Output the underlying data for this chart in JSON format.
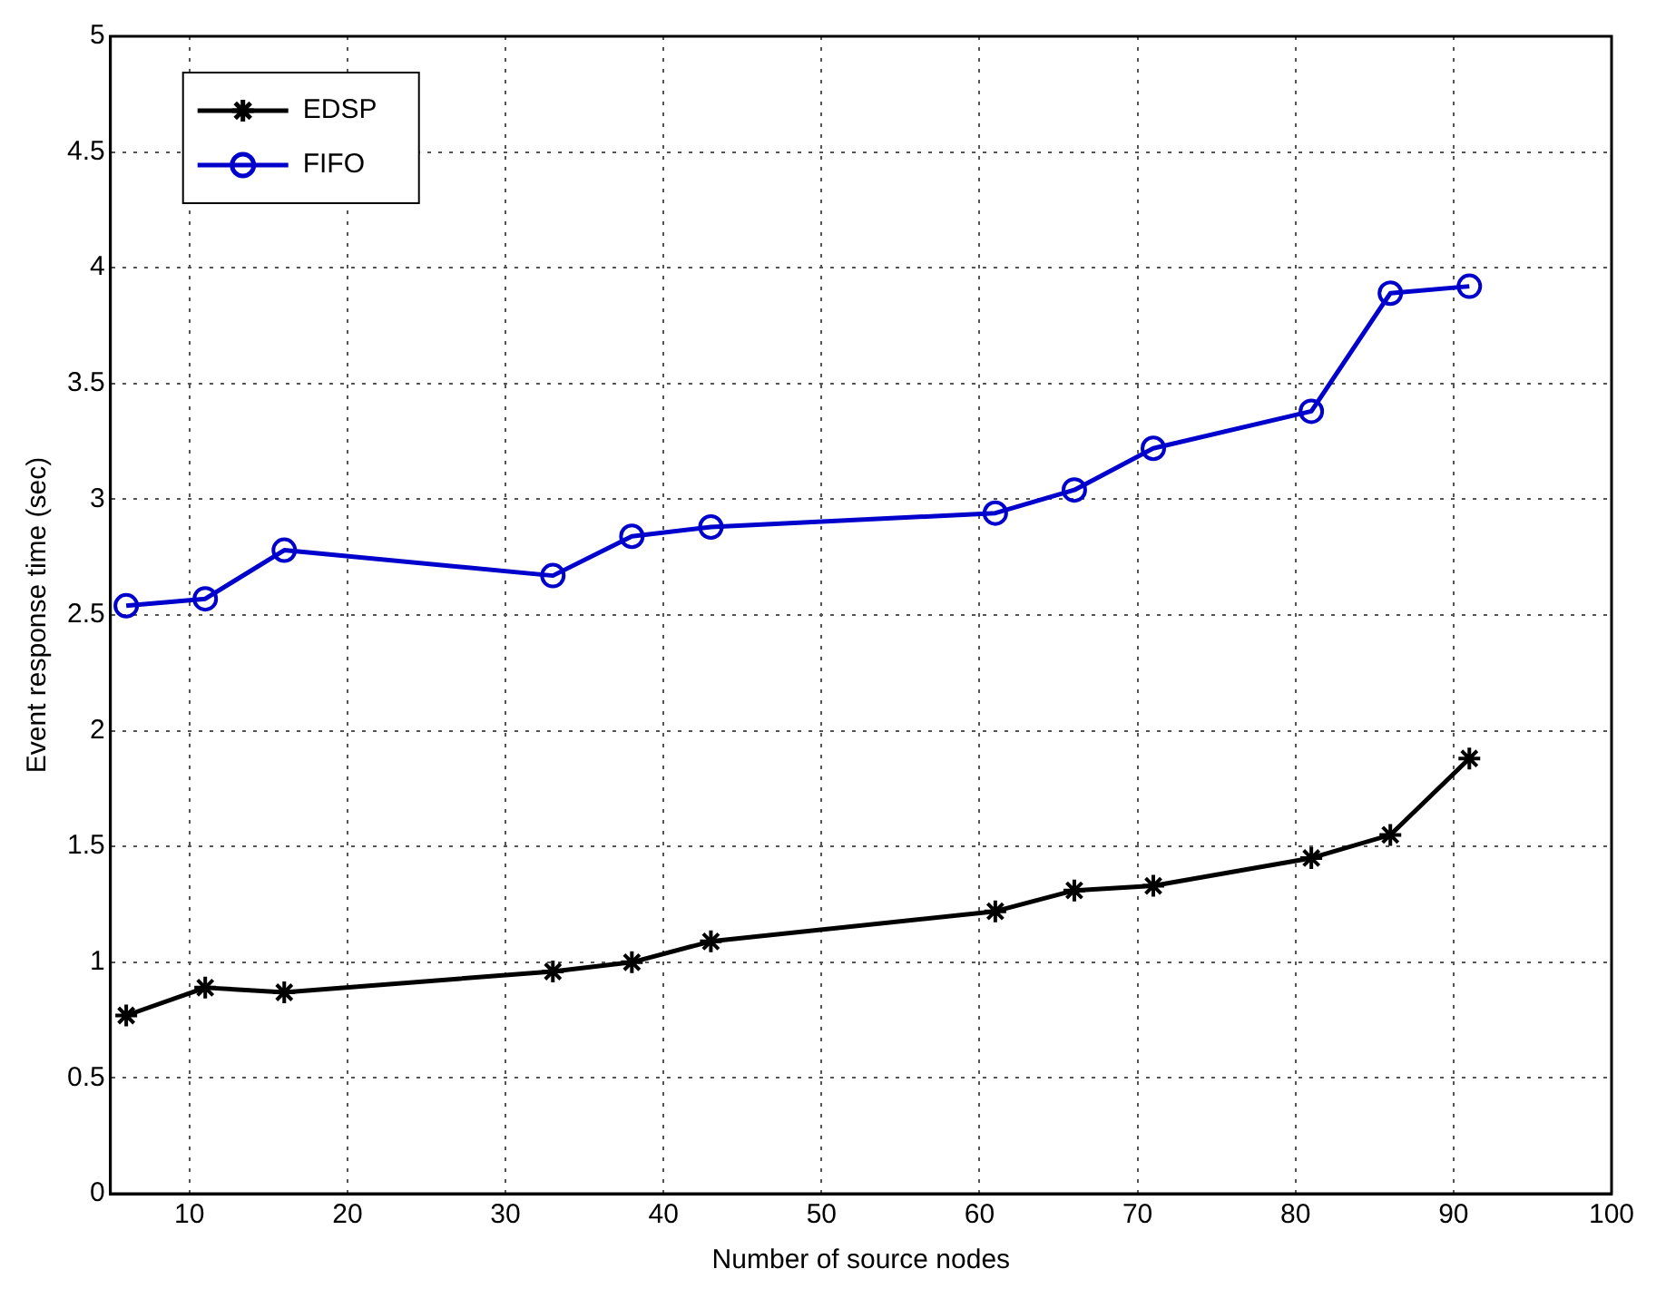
{
  "chart_data": {
    "type": "line",
    "xlabel": "Number of source nodes",
    "ylabel": "Event response time (sec)",
    "x": [
      6,
      11,
      16,
      33,
      38,
      43,
      61,
      66,
      71,
      81,
      86,
      91
    ],
    "series": [
      {
        "name": "EDSP",
        "color": "#000000",
        "marker": "cross",
        "values": [
          0.77,
          0.89,
          0.87,
          0.96,
          1.0,
          1.09,
          1.22,
          1.31,
          1.33,
          1.45,
          1.55,
          1.88
        ]
      },
      {
        "name": "FIFO",
        "color": "#0000cc",
        "marker": "circle",
        "values": [
          2.54,
          2.57,
          2.78,
          2.67,
          2.84,
          2.88,
          2.94,
          3.04,
          3.22,
          3.38,
          3.89,
          3.92
        ]
      }
    ],
    "xlim": [
      5,
      100
    ],
    "xticks": [
      10,
      20,
      30,
      40,
      50,
      60,
      70,
      80,
      90,
      100
    ],
    "ylim": [
      0,
      5
    ],
    "yticks": [
      0,
      0.5,
      1,
      1.5,
      2,
      2.5,
      3,
      3.5,
      4,
      4.5,
      5
    ],
    "grid": true,
    "legend": "top left",
    "line_style": "solid"
  }
}
